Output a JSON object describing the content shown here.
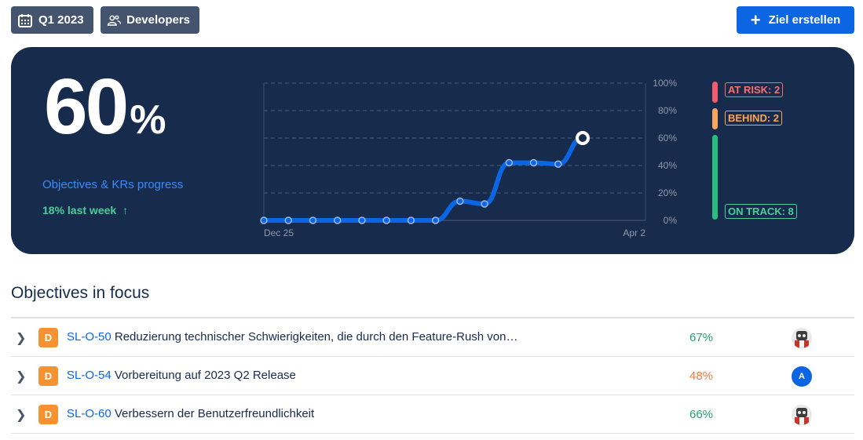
{
  "header": {
    "quarter": "Q1 2023",
    "team": "Developers",
    "create_label": "Ziel erstellen"
  },
  "summary": {
    "percent": "60",
    "percent_symbol": "%",
    "label": "Objectives & KRs progress",
    "trend": "18% last week",
    "trend_arrow": "↑"
  },
  "chart_data": {
    "type": "line",
    "x_labels": [
      "Dec 25",
      "Apr 2"
    ],
    "x_start": "Dec 25",
    "x_end": "Apr 2",
    "y_ticks": [
      "100%",
      "80%",
      "60%",
      "40%",
      "20%",
      "0%"
    ],
    "ylim": [
      0,
      100
    ],
    "grid": true,
    "line_color": "#0c66e4",
    "values": [
      0,
      0,
      0,
      0,
      0,
      0,
      0,
      0,
      14,
      12,
      42,
      42,
      41,
      60
    ]
  },
  "status": {
    "at_risk": "AT RISK: 2",
    "behind": "BEHIND: 2",
    "on_track": "ON TRACK: 8",
    "at_risk_count": 2,
    "behind_count": 2,
    "on_track_count": 8,
    "colors": {
      "at_risk": "#f15b6c",
      "behind": "#fca55d",
      "on_track": "#2abb7f"
    }
  },
  "section_title": "Objectives in focus",
  "objectives": [
    {
      "tile": "D",
      "key": "SL-O-50",
      "title": "Reduzierung technischer Schwierigkeiten, die durch den Feature-Rush von…",
      "progress": "67%",
      "progress_color": "#22a06b",
      "avatar": "robot"
    },
    {
      "tile": "D",
      "key": "SL-O-54",
      "title": "Vorbereitung auf 2023 Q2 Release",
      "progress": "48%",
      "progress_color": "#f5793a",
      "avatar": "A"
    },
    {
      "tile": "D",
      "key": "SL-O-60",
      "title": "Verbessern der Benutzerfreundlichkeit",
      "progress": "66%",
      "progress_color": "#22a06b",
      "avatar": "robot"
    }
  ]
}
